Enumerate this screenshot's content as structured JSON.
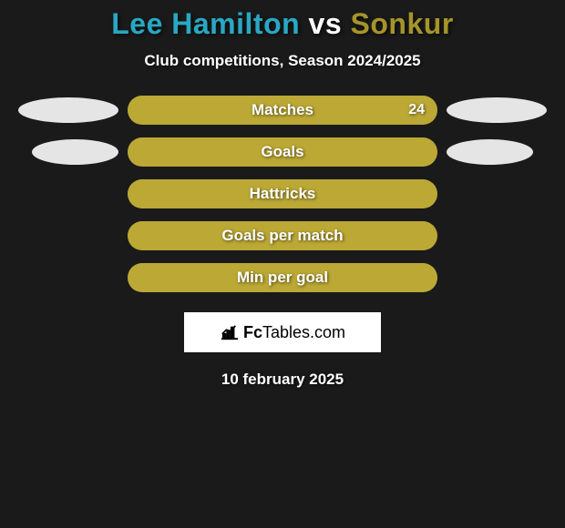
{
  "background_color": "#1a1a1a",
  "title": {
    "player1": "Lee Hamilton",
    "vs": " vs ",
    "player2": "Sonkur",
    "player1_color": "#28a8c4",
    "vs_color": "#ffffff",
    "player2_color": "#a59429",
    "fontsize": 32
  },
  "subtitle": {
    "text": "Club competitions, Season 2024/2025",
    "color": "#ffffff",
    "fontsize": 17
  },
  "bar": {
    "track_width": 340,
    "track_height": 32,
    "track_color": "#a59429",
    "fill_color": "#bba835",
    "border_radius": 16,
    "label_color": "#ffffff",
    "label_fontsize": 17
  },
  "ellipse_color": "#e5e5e5",
  "stats": [
    {
      "label": "Matches",
      "fill_pct": 100,
      "value": "24",
      "left_ellipse_w": 110,
      "right_ellipse_w": 110
    },
    {
      "label": "Goals",
      "fill_pct": 100,
      "value": "",
      "left_ellipse_w": 95,
      "right_ellipse_w": 95
    },
    {
      "label": "Hattricks",
      "fill_pct": 100,
      "value": "",
      "left_ellipse_w": 0,
      "right_ellipse_w": 0
    },
    {
      "label": "Goals per match",
      "fill_pct": 100,
      "value": "",
      "left_ellipse_w": 0,
      "right_ellipse_w": 0
    },
    {
      "label": "Min per goal",
      "fill_pct": 100,
      "value": "",
      "left_ellipse_w": 0,
      "right_ellipse_w": 0
    }
  ],
  "logo": {
    "brand_fc": "Fc",
    "brand_rest": "Tables.com",
    "box_bg": "#ffffff",
    "text_color": "#000000",
    "icon_stroke": "#000000"
  },
  "date": {
    "text": "10 february 2025",
    "color": "#ffffff",
    "fontsize": 17
  }
}
